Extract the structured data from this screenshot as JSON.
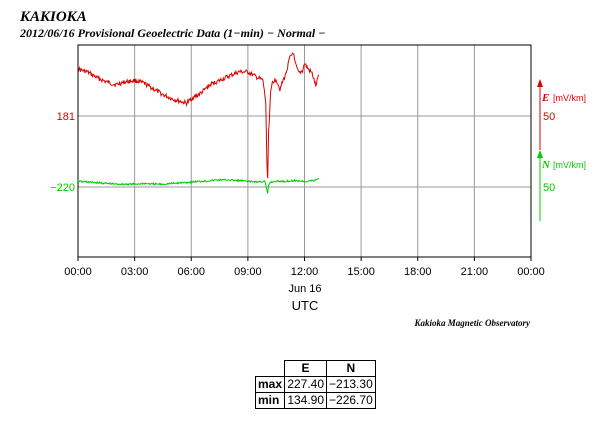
{
  "header": {
    "station": "KAKIOKA",
    "subtitle": "2012/06/16  Provisional Geoelectric Data (1−min)  − Normal −"
  },
  "credit": "Kakioka Magnetic Observatory",
  "axis": {
    "xlabel": "UTC",
    "date_label": "Jun 16",
    "x_ticks": [
      "00:00",
      "03:00",
      "06:00",
      "09:00",
      "12:00",
      "15:00",
      "18:00",
      "21:00",
      "00:00"
    ]
  },
  "colors": {
    "e": "#dd0000",
    "n": "#00cc00",
    "grid": "#999999",
    "frame": "#000000"
  },
  "right_axis": {
    "e_title": "E",
    "e_unit": "[mV/km]",
    "e_scale": "50",
    "n_title": "N",
    "n_unit": "[mV/km]",
    "n_scale": "50"
  },
  "left_ticks": {
    "e_ref": "181",
    "n_ref": "−220"
  },
  "stats": {
    "col_e": "E",
    "col_n": "N",
    "rows": [
      {
        "label": "max",
        "e": "227.40",
        "n": "−213.30"
      },
      {
        "label": "min",
        "e": "134.90",
        "n": "−226.70"
      }
    ]
  },
  "chart_data": {
    "type": "line",
    "x_unit": "hours UTC",
    "xlim": [
      0,
      24
    ],
    "series": [
      {
        "name": "E",
        "unit": "mV/km",
        "reference": 181,
        "scale_per_division": 50,
        "x": [
          0,
          0.5,
          1.0,
          1.5,
          2.0,
          2.5,
          3.0,
          3.5,
          4.0,
          4.5,
          5.0,
          5.5,
          5.75,
          6.0,
          6.5,
          7.0,
          7.5,
          8.0,
          8.5,
          9.0,
          9.5,
          9.8,
          9.95,
          10.0,
          10.05,
          10.1,
          10.2,
          10.3,
          10.5,
          10.7,
          10.9,
          11.0,
          11.2,
          11.4,
          11.5,
          11.7,
          11.9,
          12.0,
          12.2,
          12.4,
          12.6,
          12.75
        ],
        "values": [
          214,
          212,
          208,
          205,
          203,
          205,
          206,
          204,
          200,
          196,
          193,
          191,
          190,
          193,
          197,
          203,
          206,
          209,
          212,
          212,
          208,
          206,
          190,
          150,
          137,
          170,
          196,
          205,
          207,
          200,
          207,
          210,
          221,
          226,
          218,
          211,
          213,
          218,
          214,
          211,
          202,
          210
        ]
      },
      {
        "name": "N",
        "unit": "mV/km",
        "reference": -220,
        "scale_per_division": 50,
        "x": [
          0,
          0.5,
          1.0,
          1.5,
          2.0,
          2.5,
          3.0,
          3.5,
          4.0,
          4.5,
          5.0,
          5.5,
          6.0,
          6.5,
          7.0,
          7.5,
          8.0,
          8.5,
          9.0,
          9.5,
          9.9,
          10.0,
          10.05,
          10.1,
          10.2,
          10.5,
          11.0,
          11.5,
          12.0,
          12.5,
          12.75
        ],
        "values": [
          -216,
          -216.5,
          -217,
          -217.5,
          -218,
          -218,
          -218,
          -217.5,
          -218,
          -218,
          -217.5,
          -217,
          -216.5,
          -216,
          -215.5,
          -215,
          -215,
          -215.5,
          -216,
          -216.5,
          -216,
          -222,
          -225,
          -219,
          -216.5,
          -216,
          -216,
          -215.5,
          -216,
          -215.5,
          -214
        ]
      }
    ]
  }
}
